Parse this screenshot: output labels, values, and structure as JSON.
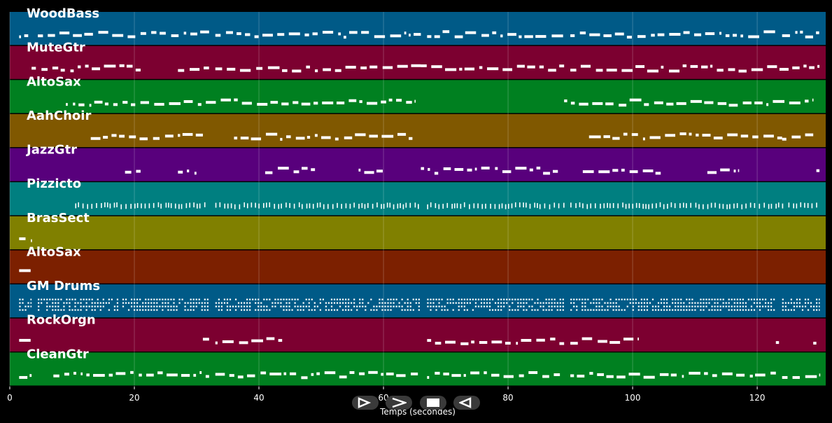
{
  "chart_data": {
    "type": "piano_roll",
    "xlabel": "Temps (secondes)",
    "xlim": [
      0,
      131
    ],
    "xticks": [
      0,
      20,
      40,
      60,
      80,
      100,
      120
    ],
    "grid": true,
    "tracks": [
      {
        "name": "WoodBass",
        "color": "#005a87",
        "phrases": [
          [
            1.5,
            3.5
          ],
          [
            4.5,
            32
          ],
          [
            33,
            66
          ],
          [
            67,
            89
          ],
          [
            90,
            123
          ],
          [
            124,
            130
          ]
        ]
      },
      {
        "name": "MuteGtr",
        "color": "#7c0030",
        "phrases": [
          [
            3.5,
            21
          ],
          [
            27,
            32
          ],
          [
            33,
            66
          ],
          [
            66,
            89
          ],
          [
            90,
            130
          ]
        ]
      },
      {
        "name": "AltoSax",
        "color": "#008020",
        "phrases": [
          [
            9,
            65
          ],
          [
            89,
            129
          ]
        ]
      },
      {
        "name": "AahChoir",
        "color": "#805800",
        "phrases": [
          [
            13,
            31
          ],
          [
            36,
            65
          ],
          [
            93,
            124
          ],
          [
            124,
            129
          ]
        ]
      },
      {
        "name": "JazzGtr",
        "color": "#58007c",
        "phrases": [
          [
            18.5,
            21
          ],
          [
            27,
            30
          ],
          [
            41,
            49
          ],
          [
            56,
            60
          ],
          [
            66,
            88
          ],
          [
            92,
            105
          ],
          [
            112,
            117
          ],
          [
            129.5,
            130
          ]
        ]
      },
      {
        "name": "Pizzicto",
        "color": "#007f80",
        "phrases": [
          [
            10.5,
            32
          ],
          [
            33,
            66
          ],
          [
            67,
            89
          ],
          [
            90,
            124
          ],
          [
            125,
            130
          ]
        ]
      },
      {
        "name": "BrasSect",
        "color": "#808000",
        "phrases": [
          [
            1.5,
            3.5
          ]
        ]
      },
      {
        "name": "AltoSax",
        "color": "#7c2000",
        "phrases": [
          [
            1.5,
            3.5
          ]
        ]
      },
      {
        "name": "GM Drums",
        "color": "#005a87",
        "phrases": [
          [
            1.5,
            3.5
          ],
          [
            4.5,
            32
          ],
          [
            33,
            66
          ],
          [
            67,
            89
          ],
          [
            90,
            123
          ],
          [
            124,
            130
          ]
        ]
      },
      {
        "name": "RockOrgn",
        "color": "#7c0030",
        "phrases": [
          [
            1.5,
            3.5
          ],
          [
            31,
            32
          ],
          [
            33,
            44
          ],
          [
            67,
            89
          ],
          [
            90,
            101
          ],
          [
            123,
            123.5
          ],
          [
            129,
            129.5
          ]
        ]
      },
      {
        "name": "CleanGtr",
        "color": "#008020",
        "phrases": [
          [
            1.5,
            3.5
          ],
          [
            7,
            32
          ],
          [
            33,
            66
          ],
          [
            67,
            89
          ],
          [
            90,
            123
          ],
          [
            124,
            130
          ]
        ]
      }
    ]
  },
  "controls": [
    {
      "name": "play-button",
      "icon": "play-icon"
    },
    {
      "name": "forward-button",
      "icon": "fast-forward-icon"
    },
    {
      "name": "stop-button",
      "icon": "stop-icon"
    },
    {
      "name": "rewind-button",
      "icon": "rewind-icon"
    }
  ]
}
